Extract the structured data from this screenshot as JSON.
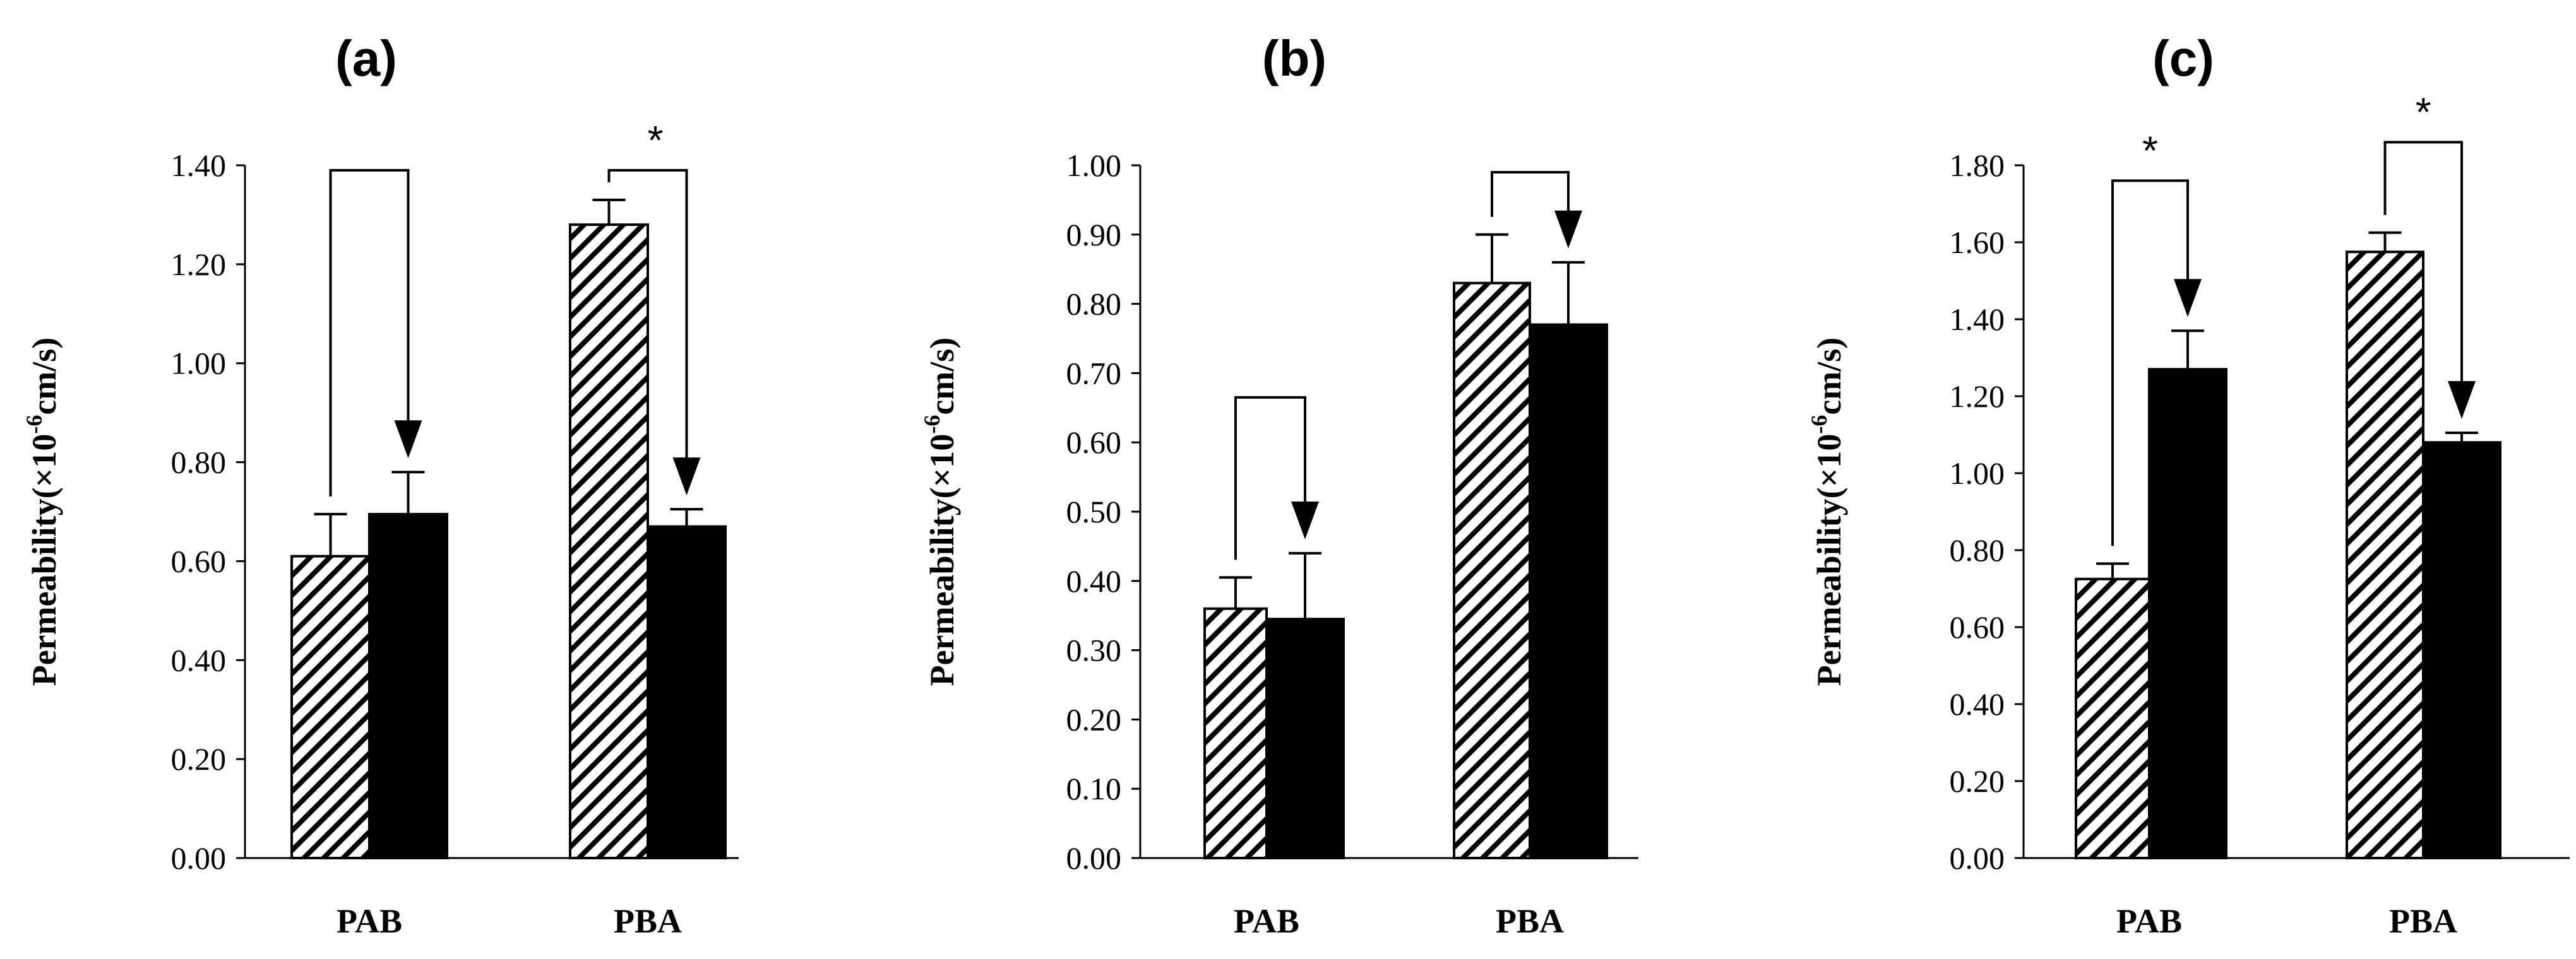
{
  "chart_data": [
    {
      "type": "bar",
      "panel_label": "(a)",
      "categories": [
        "PAB",
        "PBA"
      ],
      "ylim": [
        0,
        1.4
      ],
      "y_ticks": [
        "0.00",
        "0.20",
        "0.40",
        "0.60",
        "0.80",
        "1.00",
        "1.20",
        "1.40"
      ],
      "ylabel": {
        "prefix": "Permeability(×10",
        "exp": "-6",
        "suffix": "cm/s)"
      },
      "series": [
        {
          "name": "hatched",
          "values": [
            0.61,
            1.28
          ],
          "errors": [
            0.085,
            0.05
          ]
        },
        {
          "name": "solid",
          "values": [
            0.695,
            0.67
          ],
          "errors": [
            0.085,
            0.035
          ]
        }
      ],
      "annotations": [
        {
          "category": "PAB",
          "bracket_top": 1.39,
          "significance": ""
        },
        {
          "category": "PBA",
          "bracket_top": 1.39,
          "significance": "*"
        }
      ]
    },
    {
      "type": "bar",
      "panel_label": "(b)",
      "categories": [
        "PAB",
        "PBA"
      ],
      "ylim": [
        0,
        1.0
      ],
      "y_ticks": [
        "0.00",
        "0.10",
        "0.20",
        "0.30",
        "0.40",
        "0.50",
        "0.60",
        "0.70",
        "0.80",
        "0.90",
        "1.00"
      ],
      "ylabel": {
        "prefix": "Permeability(×10",
        "exp": "-6",
        "suffix": "cm/s)"
      },
      "series": [
        {
          "name": "hatched",
          "values": [
            0.36,
            0.83
          ],
          "errors": [
            0.045,
            0.07
          ]
        },
        {
          "name": "solid",
          "values": [
            0.345,
            0.77
          ],
          "errors": [
            0.095,
            0.09
          ]
        }
      ],
      "annotations": [
        {
          "category": "PAB",
          "bracket_top": 0.665,
          "significance": ""
        },
        {
          "category": "PBA",
          "bracket_top": 0.99,
          "significance": ""
        }
      ]
    },
    {
      "type": "bar",
      "panel_label": "(c)",
      "categories": [
        "PAB",
        "PBA"
      ],
      "ylim": [
        0,
        1.8
      ],
      "y_ticks": [
        "0.00",
        "0.20",
        "0.40",
        "0.60",
        "0.80",
        "1.00",
        "1.20",
        "1.40",
        "1.60",
        "1.80"
      ],
      "ylabel": {
        "prefix": "Permeability(×10",
        "exp": "-6",
        "suffix": "cm/s)"
      },
      "series": [
        {
          "name": "hatched",
          "values": [
            0.725,
            1.575
          ],
          "errors": [
            0.04,
            0.05
          ]
        },
        {
          "name": "solid",
          "values": [
            1.27,
            1.08
          ],
          "errors": [
            0.1,
            0.025
          ]
        }
      ],
      "annotations": [
        {
          "category": "PAB",
          "bracket_top": 1.76,
          "significance": "*"
        },
        {
          "category": "PBA",
          "bracket_top": 1.86,
          "significance": "*"
        }
      ]
    }
  ]
}
